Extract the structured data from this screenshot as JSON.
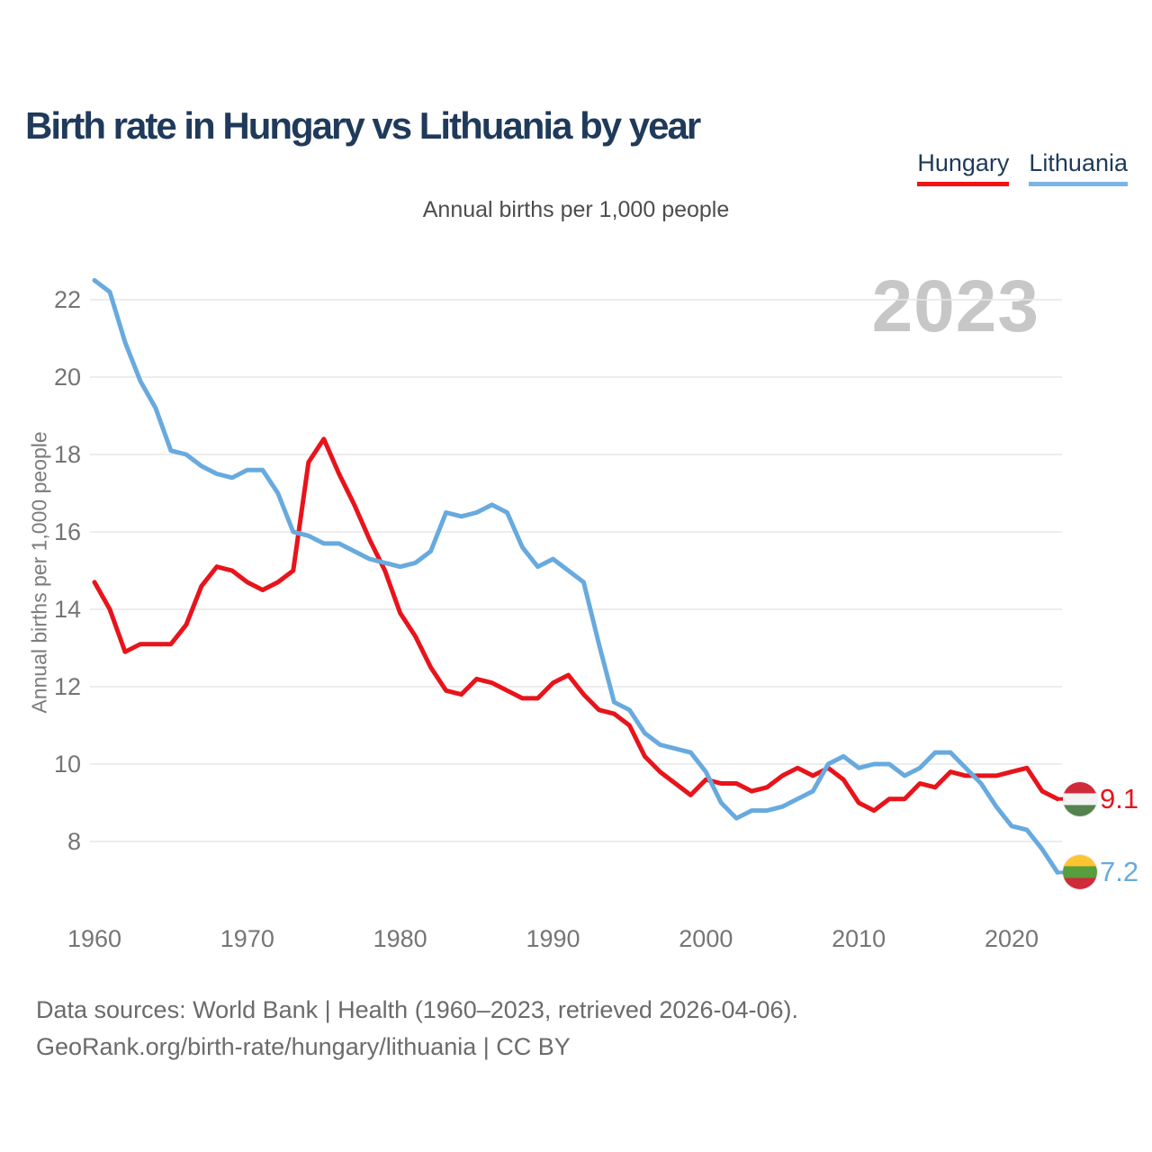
{
  "header": {
    "title": "Birth rate in Hungary vs Lithuania by year"
  },
  "legend": {
    "items": [
      {
        "label": "Hungary",
        "color": "#e8141b"
      },
      {
        "label": "Lithuania",
        "color": "#6fb0e8"
      }
    ]
  },
  "subtitle": "Annual births per 1,000 people",
  "watermark": "2023",
  "y_axis": {
    "title": "Annual births per 1,000 people",
    "ticks": [
      8,
      10,
      12,
      14,
      16,
      18,
      20,
      22
    ]
  },
  "x_axis": {
    "ticks": [
      1960,
      1970,
      1980,
      1990,
      2000,
      2010,
      2020
    ]
  },
  "chart_data": {
    "type": "line",
    "title": "Birth rate in Hungary vs Lithuania by year",
    "subtitle": "Annual births per 1,000 people",
    "ylabel": "Annual births per 1,000 people",
    "xlim": [
      1960,
      2023
    ],
    "ylim": [
      6.8,
      23
    ],
    "grid": "horizontal",
    "legend_position": "top-right",
    "x": [
      1960,
      1961,
      1962,
      1963,
      1964,
      1965,
      1966,
      1967,
      1968,
      1969,
      1970,
      1971,
      1972,
      1973,
      1974,
      1975,
      1976,
      1977,
      1978,
      1979,
      1980,
      1981,
      1982,
      1983,
      1984,
      1985,
      1986,
      1987,
      1988,
      1989,
      1990,
      1991,
      1992,
      1993,
      1994,
      1995,
      1996,
      1997,
      1998,
      1999,
      2000,
      2001,
      2002,
      2003,
      2004,
      2005,
      2006,
      2007,
      2008,
      2009,
      2010,
      2011,
      2012,
      2013,
      2014,
      2015,
      2016,
      2017,
      2018,
      2019,
      2020,
      2021,
      2022,
      2023
    ],
    "series": [
      {
        "name": "Hungary",
        "color": "#e8141b",
        "end_label": "9.1",
        "flag_colors": [
          "#cf2b3a",
          "#f4f2f2",
          "#55824f"
        ],
        "values": [
          14.7,
          14.0,
          12.9,
          13.1,
          13.1,
          13.1,
          13.6,
          14.6,
          15.1,
          15.0,
          14.7,
          14.5,
          14.7,
          15.0,
          17.8,
          18.4,
          17.5,
          16.7,
          15.8,
          15.0,
          13.9,
          13.3,
          12.5,
          11.9,
          11.8,
          12.2,
          12.1,
          11.9,
          11.7,
          11.7,
          12.1,
          12.3,
          11.8,
          11.4,
          11.3,
          11.0,
          10.2,
          9.8,
          9.5,
          9.2,
          9.6,
          9.5,
          9.5,
          9.3,
          9.4,
          9.7,
          9.9,
          9.7,
          9.9,
          9.6,
          9.0,
          8.8,
          9.1,
          9.1,
          9.5,
          9.4,
          9.8,
          9.7,
          9.7,
          9.7,
          9.8,
          9.9,
          9.3,
          9.1
        ]
      },
      {
        "name": "Lithuania",
        "color": "#68aade",
        "end_label": "7.2",
        "flag_colors": [
          "#fdc431",
          "#579e3c",
          "#cf2b3a"
        ],
        "values": [
          22.5,
          22.2,
          20.9,
          19.9,
          19.2,
          18.1,
          18.0,
          17.7,
          17.5,
          17.4,
          17.6,
          17.6,
          17.0,
          16.0,
          15.9,
          15.7,
          15.7,
          15.5,
          15.3,
          15.2,
          15.1,
          15.2,
          15.5,
          16.5,
          16.4,
          16.5,
          16.7,
          16.5,
          15.6,
          15.1,
          15.3,
          15.0,
          14.7,
          13.1,
          11.6,
          11.4,
          10.8,
          10.5,
          10.4,
          10.3,
          9.8,
          9.0,
          8.6,
          8.8,
          8.8,
          8.9,
          9.1,
          9.3,
          10.0,
          10.2,
          9.9,
          10.0,
          10.0,
          9.7,
          9.9,
          10.3,
          10.3,
          9.9,
          9.5,
          8.9,
          8.4,
          8.3,
          7.8,
          7.2
        ]
      }
    ]
  },
  "footer": {
    "line1": "Data sources: World Bank | Health (1960–2023, retrieved 2026-04-06).",
    "line2": "GeoRank.org/birth-rate/hungary/lithuania | CC BY"
  }
}
